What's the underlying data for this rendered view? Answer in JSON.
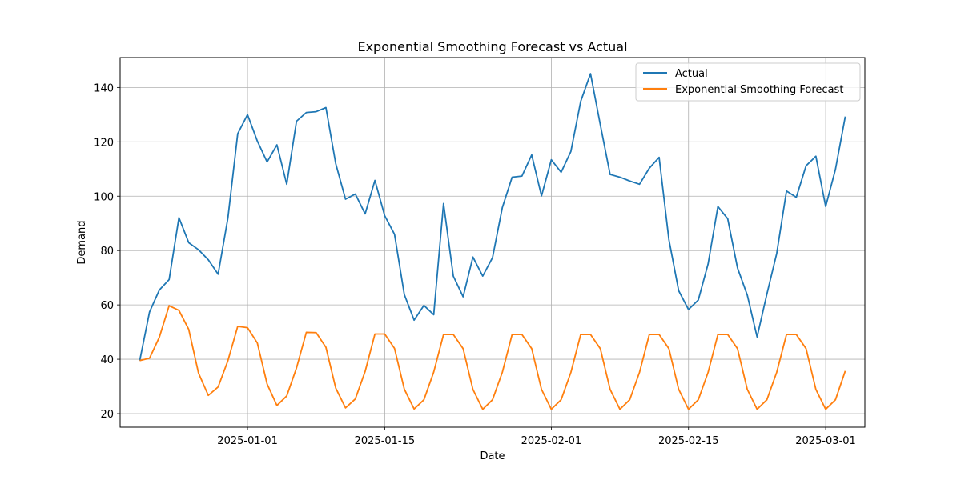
{
  "chart_data": {
    "type": "line",
    "title": "Exponential Smoothing Forecast vs Actual",
    "xlabel": "Date",
    "ylabel": "Demand",
    "x_start": "2024-12-21",
    "x_range": [
      "2024-12-19",
      "2025-03-05"
    ],
    "ylim": [
      15,
      151
    ],
    "grid": true,
    "legend_position": "upper right",
    "x_ticks": [
      {
        "date": "2025-01-01",
        "label": "2025-01-01"
      },
      {
        "date": "2025-01-15",
        "label": "2025-01-15"
      },
      {
        "date": "2025-02-01",
        "label": "2025-02-01"
      },
      {
        "date": "2025-02-15",
        "label": "2025-02-15"
      },
      {
        "date": "2025-03-01",
        "label": "2025-03-01"
      }
    ],
    "y_ticks": [
      20,
      40,
      60,
      80,
      100,
      120,
      140
    ],
    "series": [
      {
        "name": "Actual",
        "color": "#1f77b4",
        "values": [
          39.5,
          57.4,
          65.5,
          69.3,
          92.1,
          82.9,
          80.3,
          76.6,
          71.3,
          92.0,
          123.0,
          130.0,
          120.3,
          112.6,
          118.9,
          104.4,
          127.6,
          130.8,
          131.1,
          132.6,
          112.0,
          98.9,
          100.8,
          93.5,
          105.8,
          92.8,
          86.0,
          63.8,
          54.4,
          59.8,
          56.4,
          97.3,
          70.6,
          63.0,
          77.6,
          70.6,
          77.4,
          95.8,
          107.0,
          107.4,
          115.2,
          100.1,
          113.4,
          108.8,
          116.5,
          134.9,
          145.1,
          126.3,
          108.0,
          107.0,
          105.6,
          104.4,
          110.3,
          114.3,
          84.0,
          65.2,
          58.3,
          61.8,
          75.1,
          96.2,
          91.7,
          73.6,
          63.6,
          48.2,
          64.0,
          78.9,
          101.9,
          99.6,
          111.2,
          114.7,
          96.2,
          109.9,
          129.3
        ]
      },
      {
        "name": "Exponential Smoothing Forecast",
        "color": "#ff7f0e",
        "values": [
          39.5,
          40.4,
          48.1,
          59.7,
          58.0,
          51.0,
          34.9,
          26.7,
          29.8,
          39.5,
          52.1,
          51.6,
          46.0,
          30.9,
          23.0,
          26.5,
          36.8,
          49.9,
          49.8,
          44.4,
          29.4,
          22.1,
          25.4,
          35.5,
          49.3,
          49.3,
          44.0,
          29.0,
          21.7,
          25.1,
          35.3,
          49.1,
          49.1,
          43.9,
          28.9,
          21.6,
          25.1,
          35.2,
          49.1,
          49.1,
          43.9,
          28.9,
          21.6,
          25.1,
          35.2,
          49.1,
          49.1,
          43.9,
          28.9,
          21.6,
          25.1,
          35.2,
          49.1,
          49.1,
          43.9,
          28.9,
          21.6,
          25.1,
          35.2,
          49.1,
          49.1,
          43.9,
          28.9,
          21.6,
          25.1,
          35.2,
          49.1,
          49.1,
          43.9,
          28.9,
          21.6,
          25.1,
          35.7
        ]
      }
    ]
  }
}
